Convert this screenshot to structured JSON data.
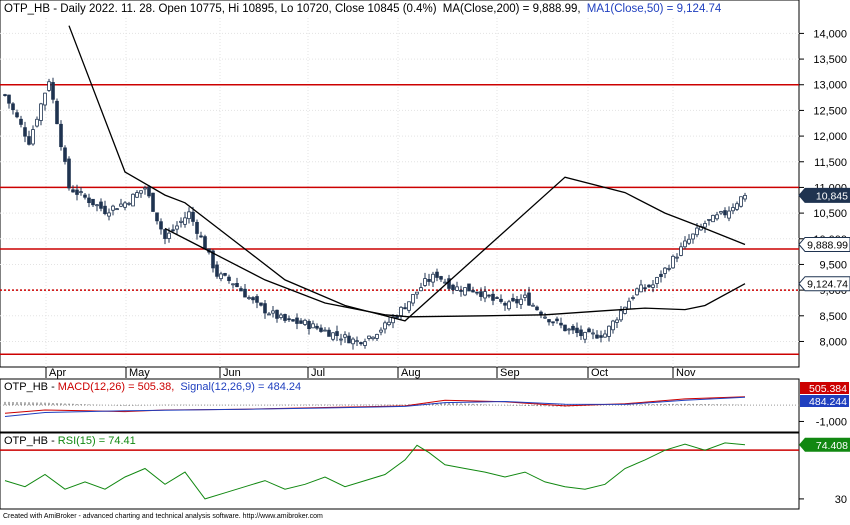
{
  "header": {
    "price_text": "OTP_HB - Daily 2022. 11. 28. Open 10775, Hi 10895, Lo 10720, Close 10845 (0.4%)",
    "ma_text": "MA(Close,200) = 9,888.99,",
    "ma1_text": "MA1(Close,50) = 9,124.74",
    "macd_prefix": "OTP_HB - ",
    "macd_text": "MACD(12,26) = 505.38,",
    "signal_text": "Signal(12,26,9) = 484.24",
    "rsi_prefix": "OTP_HB - ",
    "rsi_text": "RSI(15) = 74.41"
  },
  "footer": "Created with AmiBroker - advanced charting and technical analysis software. http://www.amibroker.com",
  "colors": {
    "candle": "#1f3350",
    "ma200": "#000000",
    "ma50": "#000000",
    "hline": "#cc0000",
    "macd": "#cc0000",
    "signal": "#1f3fbf",
    "rsi": "#118811",
    "macd_label_bg": "#cc0000",
    "signal_label_bg": "#1f3fbf",
    "rsi_label_bg": "#118811",
    "price_label_bg": "#1f3350"
  },
  "chart_data": [
    {
      "type": "candlestick",
      "panel": "price",
      "x_labels": [
        "Apr",
        "May",
        "Jun",
        "Jul",
        "Aug",
        "Sep",
        "Oct",
        "Nov"
      ],
      "y_ticks": [
        "8,000",
        "8,500",
        "9,000",
        "9,500",
        "10,000",
        "10,500",
        "11,000",
        "11,500",
        "12,000",
        "12,500",
        "13,000",
        "13,500",
        "14,000"
      ],
      "ylim": [
        7600,
        14300
      ],
      "grid": true,
      "horizontal_lines": [
        {
          "value": 13000,
          "style": "solid"
        },
        {
          "value": 11000,
          "style": "solid"
        },
        {
          "value": 9800,
          "style": "solid"
        },
        {
          "value": 9000,
          "style": "dashed"
        },
        {
          "value": 7750,
          "style": "solid"
        }
      ],
      "price_labels": [
        {
          "text": "10,845",
          "value": 10845
        },
        {
          "text": "9,888.99",
          "value": 9888.99
        },
        {
          "text": "9,124.74",
          "value": 9124.74
        }
      ],
      "close_anchors": [
        [
          0,
          12800
        ],
        [
          6,
          11900
        ],
        [
          11,
          13100
        ],
        [
          13,
          12300
        ],
        [
          16,
          11000
        ],
        [
          25,
          10550
        ],
        [
          30,
          10700
        ],
        [
          35,
          11000
        ],
        [
          40,
          10000
        ],
        [
          46,
          10500
        ],
        [
          50,
          9850
        ],
        [
          53,
          9300
        ],
        [
          57,
          9150
        ],
        [
          63,
          8700
        ],
        [
          70,
          8400
        ],
        [
          75,
          8350
        ],
        [
          82,
          8150
        ],
        [
          88,
          8000
        ],
        [
          91,
          8100
        ],
        [
          95,
          8300
        ],
        [
          100,
          8700
        ],
        [
          105,
          9150
        ],
        [
          108,
          9300
        ],
        [
          112,
          9050
        ],
        [
          118,
          9000
        ],
        [
          122,
          8800
        ],
        [
          126,
          8700
        ],
        [
          130,
          8850
        ],
        [
          135,
          8500
        ],
        [
          140,
          8250
        ],
        [
          145,
          8100
        ],
        [
          150,
          8150
        ],
        [
          155,
          8700
        ],
        [
          158,
          9000
        ],
        [
          162,
          9100
        ],
        [
          166,
          9500
        ],
        [
          170,
          9900
        ],
        [
          175,
          10300
        ],
        [
          180,
          10500
        ],
        [
          184,
          10800
        ],
        [
          185,
          10845
        ]
      ],
      "ma200_points": [
        [
          16,
          14150
        ],
        [
          30,
          11300
        ],
        [
          40,
          10850
        ],
        [
          45,
          10700
        ],
        [
          55,
          10100
        ],
        [
          70,
          9200
        ],
        [
          85,
          8700
        ],
        [
          100,
          8400
        ],
        [
          120,
          9800
        ],
        [
          140,
          11200
        ],
        [
          155,
          10900
        ],
        [
          165,
          10500
        ],
        [
          175,
          10200
        ],
        [
          185,
          9889
        ]
      ],
      "ma50_points": [
        [
          40,
          10200
        ],
        [
          50,
          9800
        ],
        [
          65,
          9200
        ],
        [
          80,
          8750
        ],
        [
          95,
          8520
        ],
        [
          101,
          8480
        ],
        [
          120,
          8500
        ],
        [
          135,
          8520
        ],
        [
          150,
          8600
        ],
        [
          160,
          8650
        ],
        [
          170,
          8620
        ],
        [
          175,
          8700
        ],
        [
          185,
          9125
        ]
      ]
    },
    {
      "type": "line",
      "panel": "macd",
      "y_ticks": [
        "-1,000"
      ],
      "series": [
        {
          "name": "MACD(12,26)",
          "points": [
            [
              0,
              -500
            ],
            [
              10,
              -300
            ],
            [
              20,
              -350
            ],
            [
              30,
              -400
            ],
            [
              40,
              -300
            ],
            [
              60,
              -250
            ],
            [
              80,
              -150
            ],
            [
              100,
              -50
            ],
            [
              110,
              300
            ],
            [
              125,
              200
            ],
            [
              140,
              -50
            ],
            [
              155,
              80
            ],
            [
              170,
              380
            ],
            [
              185,
              505
            ]
          ]
        },
        {
          "name": "Signal(12,26,9)",
          "points": [
            [
              0,
              -700
            ],
            [
              10,
              -450
            ],
            [
              20,
              -400
            ],
            [
              30,
              -350
            ],
            [
              40,
              -320
            ],
            [
              60,
              -260
            ],
            [
              80,
              -180
            ],
            [
              100,
              -80
            ],
            [
              110,
              150
            ],
            [
              125,
              220
            ],
            [
              140,
              50
            ],
            [
              155,
              40
            ],
            [
              170,
              300
            ],
            [
              185,
              484
            ]
          ]
        }
      ],
      "value_labels": [
        "505.384",
        "484.244"
      ]
    },
    {
      "type": "line",
      "panel": "rsi",
      "y_ticks": [
        "30"
      ],
      "horizontal_lines": [
        {
          "value": 70
        }
      ],
      "series": [
        {
          "name": "RSI(15)",
          "points": [
            [
              0,
              45
            ],
            [
              5,
              40
            ],
            [
              10,
              50
            ],
            [
              15,
              38
            ],
            [
              20,
              44
            ],
            [
              25,
              38
            ],
            [
              30,
              48
            ],
            [
              35,
              55
            ],
            [
              40,
              42
            ],
            [
              45,
              52
            ],
            [
              50,
              30
            ],
            [
              55,
              35
            ],
            [
              60,
              40
            ],
            [
              65,
              45
            ],
            [
              70,
              38
            ],
            [
              75,
              42
            ],
            [
              80,
              48
            ],
            [
              85,
              40
            ],
            [
              90,
              45
            ],
            [
              95,
              50
            ],
            [
              100,
              62
            ],
            [
              103,
              74
            ],
            [
              106,
              68
            ],
            [
              110,
              58
            ],
            [
              115,
              55
            ],
            [
              120,
              52
            ],
            [
              125,
              48
            ],
            [
              130,
              52
            ],
            [
              135,
              44
            ],
            [
              140,
              40
            ],
            [
              145,
              38
            ],
            [
              150,
              42
            ],
            [
              155,
              55
            ],
            [
              160,
              62
            ],
            [
              165,
              70
            ],
            [
              170,
              75
            ],
            [
              175,
              70
            ],
            [
              180,
              76
            ],
            [
              185,
              74.41
            ]
          ]
        }
      ],
      "value_labels": [
        "74.408"
      ]
    }
  ]
}
